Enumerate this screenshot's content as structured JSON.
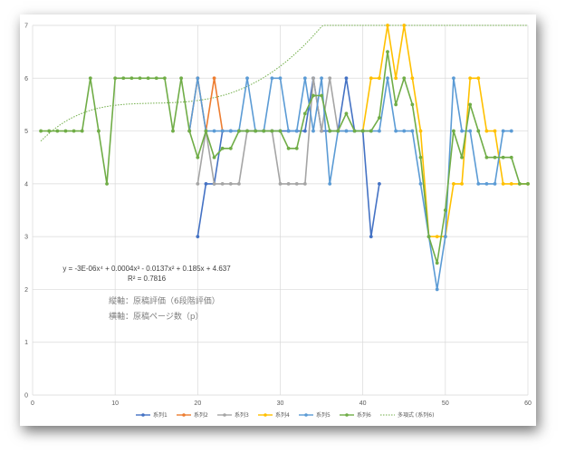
{
  "chart_data": {
    "type": "line",
    "title": "",
    "xlabel": "",
    "ylabel": "",
    "xlim": [
      0,
      60
    ],
    "ylim": [
      0,
      7
    ],
    "x_ticks": [
      0,
      10,
      20,
      30,
      40,
      50,
      60
    ],
    "y_ticks": [
      0,
      1,
      2,
      3,
      4,
      5,
      6,
      7
    ],
    "grid": true,
    "legend_position": "bottom",
    "series": [
      {
        "name": "系列1",
        "color": "#4472c4",
        "points": [
          [
            20,
            3
          ],
          [
            21,
            4
          ],
          [
            22,
            4
          ],
          [
            23,
            5
          ],
          [
            24,
            5
          ],
          [
            25,
            5
          ],
          [
            26,
            5
          ],
          [
            27,
            5
          ],
          [
            28,
            5
          ],
          [
            29,
            5
          ],
          [
            30,
            5
          ],
          [
            31,
            5
          ],
          [
            32,
            5
          ],
          [
            33,
            5
          ],
          [
            34,
            6
          ],
          [
            35,
            5
          ],
          [
            36,
            5
          ],
          [
            37,
            5
          ],
          [
            38,
            6
          ],
          [
            39,
            5
          ],
          [
            40,
            5
          ],
          [
            41,
            3
          ],
          [
            42,
            4
          ]
        ]
      },
      {
        "name": "系列2",
        "color": "#ed7d31",
        "points": [
          [
            19,
            5
          ],
          [
            20,
            6
          ],
          [
            21,
            5
          ],
          [
            22,
            6
          ],
          [
            23,
            5
          ]
        ]
      },
      {
        "name": "系列3",
        "color": "#a5a5a5",
        "points": [
          [
            20,
            4
          ],
          [
            21,
            5
          ],
          [
            22,
            4
          ],
          [
            23,
            4
          ],
          [
            24,
            4
          ],
          [
            25,
            4
          ],
          [
            26,
            5
          ],
          [
            27,
            5
          ],
          [
            28,
            5
          ],
          [
            29,
            5
          ],
          [
            30,
            4
          ],
          [
            31,
            4
          ],
          [
            32,
            4
          ],
          [
            33,
            4
          ],
          [
            34,
            6
          ],
          [
            35,
            5
          ],
          [
            36,
            6
          ],
          [
            37,
            5
          ],
          [
            38,
            5
          ]
        ]
      },
      {
        "name": "系列4",
        "color": "#ffc000",
        "points": [
          [
            40,
            5
          ],
          [
            41,
            6
          ],
          [
            42,
            6
          ],
          [
            43,
            7
          ],
          [
            44,
            6
          ],
          [
            45,
            7
          ],
          [
            46,
            6
          ],
          [
            47,
            5
          ],
          [
            48,
            3
          ],
          [
            49,
            3
          ],
          [
            50,
            3
          ],
          [
            51,
            4
          ],
          [
            52,
            4
          ],
          [
            53,
            6
          ],
          [
            54,
            6
          ],
          [
            55,
            5
          ],
          [
            56,
            5
          ],
          [
            57,
            4
          ],
          [
            58,
            4
          ],
          [
            59,
            4
          ],
          [
            60,
            4
          ]
        ]
      },
      {
        "name": "系列5",
        "color": "#5b9bd5",
        "points": [
          [
            19,
            5
          ],
          [
            20,
            6
          ],
          [
            21,
            5
          ],
          [
            22,
            5
          ],
          [
            23,
            5
          ],
          [
            24,
            5
          ],
          [
            25,
            5
          ],
          [
            26,
            6
          ],
          [
            27,
            5
          ],
          [
            28,
            5
          ],
          [
            29,
            6
          ],
          [
            30,
            6
          ],
          [
            31,
            5
          ],
          [
            32,
            5
          ],
          [
            33,
            6
          ],
          [
            34,
            5
          ],
          [
            35,
            6
          ],
          [
            36,
            4
          ],
          [
            37,
            5
          ],
          [
            38,
            5
          ],
          [
            39,
            5
          ],
          [
            40,
            5
          ],
          [
            41,
            5
          ],
          [
            42,
            5
          ],
          [
            43,
            6
          ],
          [
            44,
            5
          ],
          [
            45,
            5
          ],
          [
            46,
            5
          ],
          [
            47,
            4
          ],
          [
            48,
            3
          ],
          [
            49,
            2
          ],
          [
            50,
            3
          ],
          [
            51,
            6
          ],
          [
            52,
            5
          ],
          [
            53,
            5
          ],
          [
            54,
            4
          ],
          [
            55,
            4
          ],
          [
            56,
            4
          ],
          [
            57,
            5
          ],
          [
            58,
            5
          ]
        ]
      },
      {
        "name": "系列6",
        "color": "#70ad47",
        "points": [
          [
            1,
            5
          ],
          [
            2,
            5
          ],
          [
            3,
            5
          ],
          [
            4,
            5
          ],
          [
            5,
            5
          ],
          [
            6,
            5
          ],
          [
            7,
            6
          ],
          [
            8,
            5
          ],
          [
            9,
            4
          ],
          [
            10,
            6
          ],
          [
            11,
            6
          ],
          [
            12,
            6
          ],
          [
            13,
            6
          ],
          [
            14,
            6
          ],
          [
            15,
            6
          ],
          [
            16,
            6
          ],
          [
            17,
            5
          ],
          [
            18,
            6
          ],
          [
            19,
            5
          ],
          [
            20,
            4.5
          ],
          [
            21,
            5
          ],
          [
            22,
            4.5
          ],
          [
            23,
            4.67
          ],
          [
            24,
            4.67
          ],
          [
            25,
            5
          ],
          [
            26,
            5
          ],
          [
            27,
            5
          ],
          [
            28,
            5
          ],
          [
            29,
            5
          ],
          [
            30,
            5
          ],
          [
            31,
            4.67
          ],
          [
            32,
            4.67
          ],
          [
            33,
            5.33
          ],
          [
            34,
            5.67
          ],
          [
            35,
            5.67
          ],
          [
            36,
            5
          ],
          [
            37,
            5
          ],
          [
            38,
            5.33
          ],
          [
            39,
            5
          ],
          [
            40,
            5
          ],
          [
            41,
            5
          ],
          [
            42,
            5.25
          ],
          [
            43,
            6.5
          ],
          [
            44,
            5.5
          ],
          [
            45,
            6
          ],
          [
            46,
            5.5
          ],
          [
            47,
            4.5
          ],
          [
            48,
            3
          ],
          [
            49,
            2.5
          ],
          [
            50,
            3.5
          ],
          [
            51,
            5
          ],
          [
            52,
            4.5
          ],
          [
            53,
            5.5
          ],
          [
            54,
            5
          ],
          [
            55,
            4.5
          ],
          [
            56,
            4.5
          ],
          [
            57,
            4.5
          ],
          [
            58,
            4.5
          ],
          [
            59,
            4
          ],
          [
            60,
            4
          ]
        ]
      }
    ],
    "trendline": {
      "name": "多項式 (系列6)",
      "color": "#70ad47",
      "coefficients": [
        4.637,
        0.185,
        -0.0137,
        0.0004,
        -3e-06
      ],
      "equation": "y = -3E-06x⁴ + 0.0004x³ - 0.0137x² + 0.185x + 4.637",
      "r_squared": "R² = 0.7816"
    },
    "annotations": [
      "縦軸：原稿評価（6段階評価）",
      "横軸：原稿ページ数（p）"
    ]
  }
}
